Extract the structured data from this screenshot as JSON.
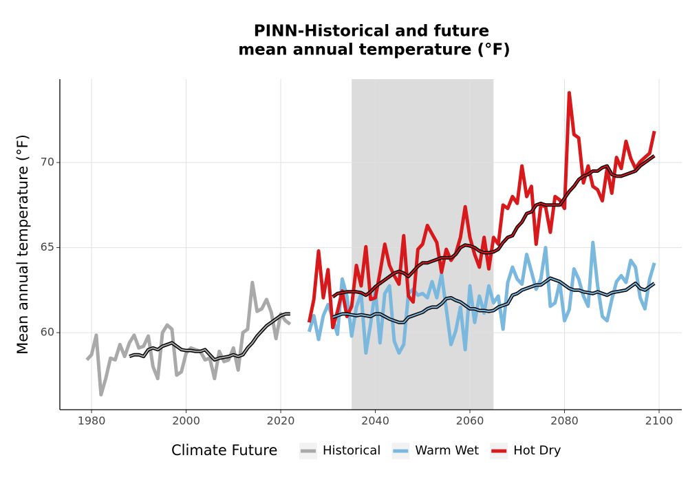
{
  "chart_data": {
    "type": "line",
    "title": [
      "PINN-Historical and future",
      "mean annual temperature (°F)"
    ],
    "y_label": "Mean annual temperature (°F)",
    "legend_title": "Climate Future",
    "xlim": [
      1973.3,
      2104.8
    ],
    "ylim": [
      55.47,
      74.9
    ],
    "xticks": [
      1980,
      2000,
      2020,
      2040,
      2060,
      2080,
      2100
    ],
    "yticks": [
      60,
      65,
      70
    ],
    "grid": true,
    "shaded_period": [
      2035,
      2065
    ],
    "series": [
      {
        "name": "Historical",
        "color": "#a9a9a9",
        "x": [
          1979,
          1980,
          1981,
          1982,
          1983,
          1984,
          1985,
          1986,
          1987,
          1988,
          1989,
          1990,
          1991,
          1992,
          1993,
          1994,
          1995,
          1996,
          1997,
          1998,
          1999,
          2000,
          2001,
          2002,
          2003,
          2004,
          2005,
          2006,
          2007,
          2008,
          2009,
          2010,
          2011,
          2012,
          2013,
          2014,
          2015,
          2016,
          2017,
          2018,
          2019,
          2020,
          2021,
          2022
        ],
        "values": [
          58.4,
          58.7,
          59.85,
          56.35,
          57.3,
          58.5,
          58.4,
          59.3,
          58.6,
          59.4,
          59.85,
          59.1,
          59.2,
          59.8,
          58.0,
          57.3,
          60.0,
          60.45,
          60.2,
          57.5,
          57.7,
          58.8,
          59.1,
          59.0,
          58.9,
          58.4,
          58.5,
          57.3,
          58.9,
          58.3,
          58.4,
          59.1,
          57.8,
          60.0,
          60.2,
          62.95,
          61.25,
          61.4,
          61.95,
          61.2,
          59.65,
          61.1,
          60.7,
          60.5
        ],
        "trend": {
          "x": [
            1988,
            1989,
            1990,
            1991,
            1992,
            1993,
            1994,
            1995,
            1996,
            1997,
            1998,
            1999,
            2000,
            2001,
            2002,
            2003,
            2004,
            2005,
            2006,
            2007,
            2008,
            2009,
            2010,
            2011,
            2012,
            2013,
            2014,
            2015,
            2016,
            2017,
            2018,
            2019,
            2020,
            2021,
            2022
          ],
          "values": [
            58.6,
            58.7,
            58.7,
            58.6,
            59.0,
            59.1,
            59.0,
            59.2,
            59.3,
            59.4,
            59.2,
            59.0,
            58.95,
            58.95,
            58.9,
            58.9,
            59.0,
            58.7,
            58.4,
            58.5,
            58.55,
            58.6,
            58.7,
            58.6,
            58.7,
            59.1,
            59.4,
            59.8,
            60.1,
            60.4,
            60.6,
            60.8,
            61.0,
            61.1,
            61.1
          ]
        }
      },
      {
        "name": "Warm Wet",
        "color": "#7ab8de",
        "x": [
          2026,
          2027,
          2028,
          2029,
          2030,
          2031,
          2032,
          2033,
          2034,
          2035,
          2036,
          2037,
          2038,
          2039,
          2040,
          2041,
          2042,
          2043,
          2044,
          2045,
          2046,
          2047,
          2048,
          2049,
          2050,
          2051,
          2052,
          2053,
          2054,
          2055,
          2056,
          2057,
          2058,
          2059,
          2060,
          2061,
          2062,
          2063,
          2064,
          2065,
          2066,
          2067,
          2068,
          2069,
          2070,
          2071,
          2072,
          2073,
          2074,
          2075,
          2076,
          2077,
          2078,
          2079,
          2080,
          2081,
          2082,
          2083,
          2084,
          2085,
          2086,
          2087,
          2088,
          2089,
          2090,
          2091,
          2092,
          2093,
          2094,
          2095,
          2096,
          2097,
          2098,
          2099
        ],
        "values": [
          60.05,
          61.0,
          59.6,
          61.0,
          61.65,
          60.85,
          59.9,
          63.15,
          62.15,
          59.8,
          61.5,
          62.3,
          58.8,
          60.5,
          62.55,
          59.4,
          62.3,
          62.75,
          59.5,
          58.8,
          59.3,
          62.3,
          62.55,
          62.2,
          62.3,
          62.05,
          63.0,
          62.05,
          63.45,
          61.4,
          59.3,
          60.1,
          61.5,
          59.0,
          62.75,
          60.6,
          62.15,
          61.15,
          62.75,
          61.75,
          62.15,
          60.2,
          62.95,
          63.85,
          63.15,
          62.85,
          64.6,
          63.6,
          62.55,
          63.15,
          65.0,
          61.55,
          61.75,
          62.95,
          60.7,
          61.35,
          63.75,
          63.15,
          62.15,
          61.55,
          65.3,
          62.75,
          60.95,
          60.7,
          61.95,
          63.0,
          63.35,
          62.95,
          64.25,
          63.85,
          62.05,
          61.4,
          63.15,
          64.1
        ],
        "trend": {
          "x": [
            2031,
            2032,
            2033,
            2034,
            2035,
            2036,
            2037,
            2038,
            2039,
            2040,
            2041,
            2042,
            2043,
            2044,
            2045,
            2046,
            2047,
            2048,
            2049,
            2050,
            2051,
            2052,
            2053,
            2054,
            2055,
            2056,
            2057,
            2058,
            2059,
            2060,
            2061,
            2062,
            2063,
            2064,
            2065,
            2066,
            2067,
            2068,
            2069,
            2070,
            2071,
            2072,
            2073,
            2074,
            2075,
            2076,
            2077,
            2078,
            2079,
            2080,
            2081,
            2082,
            2083,
            2084,
            2085,
            2086,
            2087,
            2088,
            2089,
            2090,
            2091,
            2092,
            2093,
            2094,
            2095,
            2096,
            2097,
            2098,
            2099
          ],
          "values": [
            60.9,
            61.0,
            61.1,
            61.1,
            61.05,
            61.0,
            61.05,
            61.0,
            60.95,
            61.1,
            61.1,
            60.95,
            60.8,
            60.7,
            60.6,
            60.6,
            60.9,
            61.0,
            61.1,
            61.2,
            61.4,
            61.5,
            61.5,
            61.7,
            62.0,
            62.05,
            61.9,
            61.8,
            61.6,
            61.4,
            61.4,
            61.3,
            61.3,
            61.25,
            61.3,
            61.5,
            61.6,
            61.7,
            62.2,
            62.3,
            62.5,
            62.6,
            62.7,
            62.8,
            62.8,
            63.0,
            63.2,
            63.1,
            63.0,
            62.8,
            62.6,
            62.5,
            62.5,
            62.4,
            62.35,
            62.3,
            62.4,
            62.3,
            62.2,
            62.35,
            62.4,
            62.45,
            62.5,
            62.7,
            62.9,
            62.6,
            62.5,
            62.7,
            62.9
          ]
        }
      },
      {
        "name": "Hot Dry",
        "color": "#d7191c",
        "x": [
          2026,
          2027,
          2028,
          2029,
          2030,
          2031,
          2032,
          2033,
          2034,
          2035,
          2036,
          2037,
          2038,
          2039,
          2040,
          2041,
          2042,
          2043,
          2044,
          2045,
          2046,
          2047,
          2048,
          2049,
          2050,
          2051,
          2052,
          2053,
          2054,
          2055,
          2056,
          2057,
          2058,
          2059,
          2060,
          2061,
          2062,
          2063,
          2064,
          2065,
          2066,
          2067,
          2068,
          2069,
          2070,
          2071,
          2072,
          2073,
          2074,
          2075,
          2076,
          2077,
          2078,
          2079,
          2080,
          2081,
          2082,
          2083,
          2084,
          2085,
          2086,
          2087,
          2088,
          2089,
          2090,
          2091,
          2092,
          2093,
          2094,
          2095,
          2096,
          2097,
          2098,
          2099
        ],
        "values": [
          60.6,
          61.95,
          64.8,
          62.05,
          63.7,
          60.3,
          61.25,
          62.45,
          60.95,
          61.55,
          63.95,
          62.75,
          65.05,
          61.95,
          62.05,
          63.55,
          65.2,
          63.95,
          63.35,
          62.85,
          65.7,
          62.15,
          61.8,
          64.9,
          65.2,
          66.3,
          65.8,
          65.3,
          63.55,
          64.9,
          64.25,
          64.65,
          65.6,
          67.4,
          65.6,
          64.6,
          63.85,
          65.6,
          63.75,
          65.6,
          65.2,
          67.5,
          67.3,
          68.0,
          67.6,
          69.8,
          68.0,
          68.6,
          65.2,
          67.5,
          67.4,
          65.9,
          68.0,
          67.8,
          67.3,
          74.1,
          71.65,
          71.45,
          68.8,
          69.8,
          68.6,
          68.4,
          67.75,
          69.65,
          68.2,
          70.3,
          69.65,
          71.25,
          70.25,
          69.65,
          70.05,
          70.3,
          70.55,
          71.85
        ],
        "trend": {
          "x": [
            2031,
            2032,
            2033,
            2034,
            2035,
            2036,
            2037,
            2038,
            2039,
            2040,
            2041,
            2042,
            2043,
            2044,
            2045,
            2046,
            2047,
            2048,
            2049,
            2050,
            2051,
            2052,
            2053,
            2054,
            2055,
            2056,
            2057,
            2058,
            2059,
            2060,
            2061,
            2062,
            2063,
            2064,
            2065,
            2066,
            2067,
            2068,
            2069,
            2070,
            2071,
            2072,
            2073,
            2074,
            2075,
            2076,
            2077,
            2078,
            2079,
            2080,
            2081,
            2082,
            2083,
            2084,
            2085,
            2086,
            2087,
            2088,
            2089,
            2090,
            2091,
            2092,
            2093,
            2094,
            2095,
            2096,
            2097,
            2098,
            2099
          ],
          "values": [
            62.1,
            62.3,
            62.35,
            62.4,
            62.4,
            62.4,
            62.35,
            62.2,
            62.4,
            62.7,
            62.9,
            63.1,
            63.3,
            63.5,
            63.6,
            63.5,
            63.3,
            63.6,
            63.9,
            64.1,
            64.1,
            64.2,
            64.3,
            64.4,
            64.4,
            64.4,
            64.6,
            65.0,
            65.15,
            65.1,
            65.0,
            64.8,
            64.7,
            64.7,
            64.75,
            64.9,
            65.3,
            65.6,
            65.7,
            66.2,
            66.5,
            67.0,
            67.1,
            67.5,
            67.6,
            67.5,
            67.5,
            67.5,
            67.5,
            67.9,
            68.3,
            68.6,
            69.0,
            69.2,
            69.3,
            69.5,
            69.5,
            69.7,
            69.8,
            69.3,
            69.2,
            69.2,
            69.3,
            69.4,
            69.5,
            69.8,
            70.0,
            70.2,
            70.4
          ]
        }
      }
    ]
  }
}
